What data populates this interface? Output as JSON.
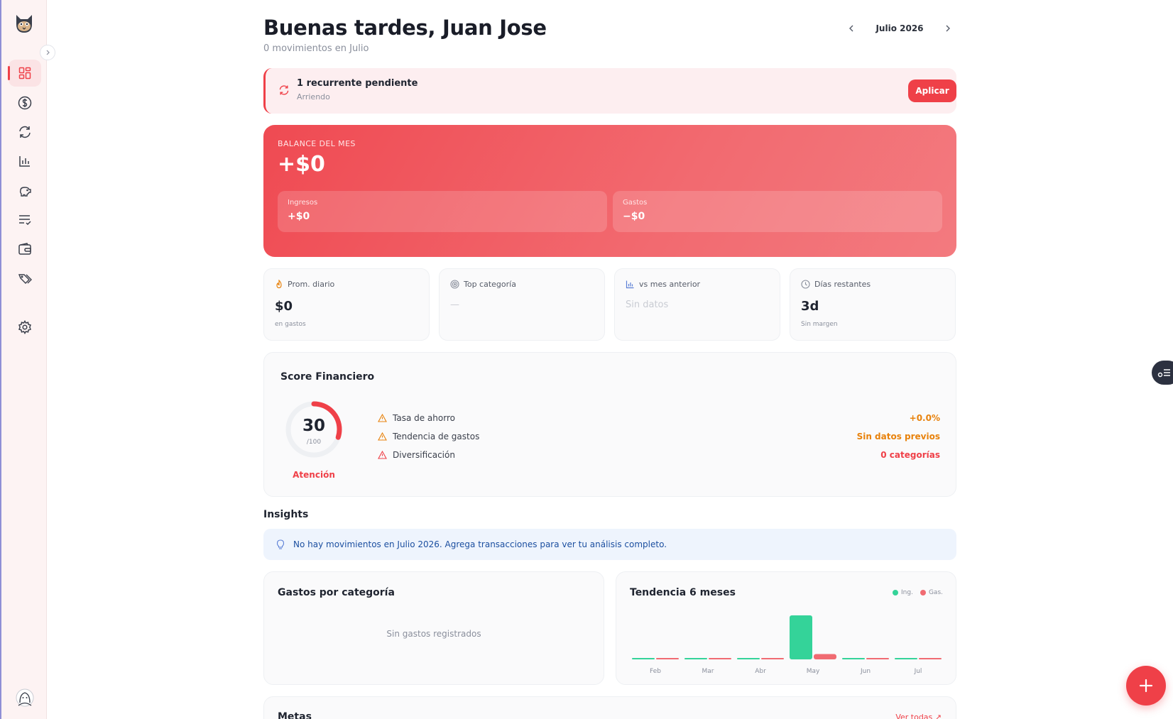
{
  "header": {
    "greeting": "Buenas tardes, Juan Jose",
    "subtitle": "0 movimientos en Julio",
    "month": "Julio 2026"
  },
  "recurring": {
    "title": "1 recurrente pendiente",
    "subtitle": "Arriendo",
    "action_label": "Aplicar"
  },
  "balance": {
    "label": "BALANCE DEL MES",
    "value": "+$0",
    "income_label": "Ingresos",
    "income_value": "+$0",
    "expense_label": "Gastos",
    "expense_value": "−$0"
  },
  "stats": [
    {
      "icon": "flame-icon",
      "label": "Prom. diario",
      "value": "$0",
      "foot": "en gastos"
    },
    {
      "icon": "target-icon",
      "label": "Top categoría",
      "value": "—",
      "foot": ""
    },
    {
      "icon": "bar-chart-icon",
      "label": "vs mes anterior",
      "value": "Sin datos",
      "foot": ""
    },
    {
      "icon": "clock-icon",
      "label": "Días restantes",
      "value": "3d",
      "foot": "Sin margen"
    }
  ],
  "score": {
    "title": "Score Financiero",
    "value": "30",
    "max": "/100",
    "status": "Atención",
    "fraction": 0.3,
    "metrics": [
      {
        "name": "Tasa de ahorro",
        "value": "+0.0%",
        "color": "#e8820c"
      },
      {
        "name": "Tendencia de gastos",
        "value": "Sin datos previos",
        "color": "#e8820c"
      },
      {
        "name": "Diversificación",
        "value": "0 categorías",
        "color": "#ef4048"
      }
    ]
  },
  "insights": {
    "title": "Insights",
    "message": "No hay movimientos en Julio 2026. Agrega transacciones para ver tu análisis completo."
  },
  "expenses_panel": {
    "title": "Gastos por categoría",
    "empty": "Sin gastos registrados"
  },
  "trend_panel": {
    "title": "Tendencia 6 meses",
    "legend_income": "Ing.",
    "legend_expense": "Gas."
  },
  "goals": {
    "title": "Metas",
    "link": "Ver todas ↗"
  },
  "colors": {
    "accent": "#ef4048",
    "income": "#34d399",
    "expense": "#f06b72"
  },
  "chart_data": {
    "type": "bar",
    "title": "Tendencia 6 meses",
    "categories": [
      "Feb",
      "Mar",
      "Abr",
      "May",
      "Jun",
      "Jul"
    ],
    "series": [
      {
        "name": "Ing.",
        "values": [
          0,
          0,
          0,
          100,
          0,
          0
        ]
      },
      {
        "name": "Gas.",
        "values": [
          0,
          0,
          0,
          12,
          0,
          0
        ]
      }
    ],
    "ylim": [
      0,
      100
    ],
    "legend": "top-right"
  }
}
